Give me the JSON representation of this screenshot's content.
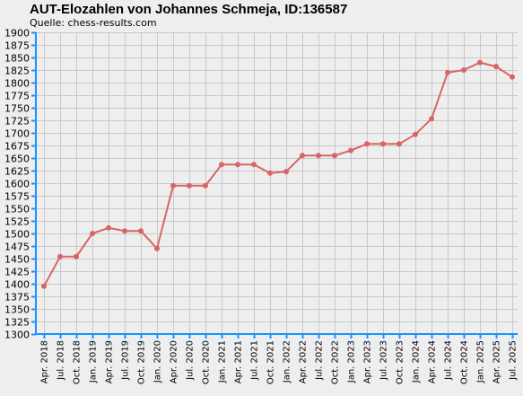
{
  "chart_data": {
    "type": "line",
    "title": "AUT-Elozahlen von Johannes Schmeja, ID:136587",
    "subtitle": "Quelle: chess-results.com",
    "xlabel": "",
    "ylabel": "",
    "ylim": [
      1300,
      1900
    ],
    "ytick_step": 25,
    "yticks": [
      "1300",
      "1325",
      "1350",
      "1375",
      "1400",
      "1425",
      "1450",
      "1475",
      "1500",
      "1525",
      "1550",
      "1575",
      "1600",
      "1625",
      "1650",
      "1675",
      "1700",
      "1725",
      "1750",
      "1775",
      "1800",
      "1825",
      "1850",
      "1875",
      "1900"
    ],
    "categories": [
      "Apr. 2018",
      "Jul. 2018",
      "Oct. 2018",
      "Jan. 2019",
      "Apr. 2019",
      "Jul. 2019",
      "Oct. 2019",
      "Jan. 2020",
      "Apr. 2020",
      "Jul. 2020",
      "Oct. 2020",
      "Jan. 2021",
      "Apr. 2021",
      "Jul. 2021",
      "Oct. 2021",
      "Jan. 2022",
      "Apr. 2022",
      "Jul. 2022",
      "Oct. 2022",
      "Jan. 2023",
      "Apr. 2023",
      "Jul. 2023",
      "Oct. 2023",
      "Jan. 2024",
      "Apr. 2024",
      "Jul. 2024",
      "Oct. 2024",
      "Jan. 2025",
      "Apr. 2025",
      "Jul. 2025"
    ],
    "series": [
      {
        "values": [
          1395,
          1454,
          1454,
          1500,
          1511,
          1505,
          1505,
          1470,
          1595,
          1595,
          1595,
          1637,
          1637,
          1637,
          1620,
          1623,
          1655,
          1655,
          1655,
          1665,
          1678,
          1678,
          1678,
          1697,
          1728,
          1820,
          1825,
          1840,
          1832,
          1811
        ]
      }
    ],
    "grid": true,
    "legend": "none"
  },
  "colors": {
    "background": "#eeeeee",
    "grid": "#c8c8c8",
    "axis": "#1e90ff",
    "line": "#d96464",
    "marker": "#d96464"
  }
}
